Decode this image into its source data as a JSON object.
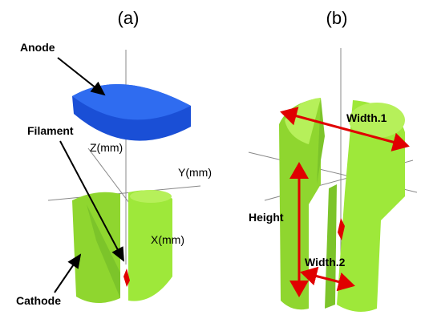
{
  "panels": [
    {
      "label": "(a)",
      "callouts": [
        "Anode",
        "Filament",
        "Cathode"
      ],
      "axes": [
        "Z(mm)",
        "Y(mm)",
        "X(mm)"
      ]
    },
    {
      "label": "(b)",
      "dimensions": [
        "Width.1",
        "Height",
        "Width.2"
      ]
    }
  ]
}
